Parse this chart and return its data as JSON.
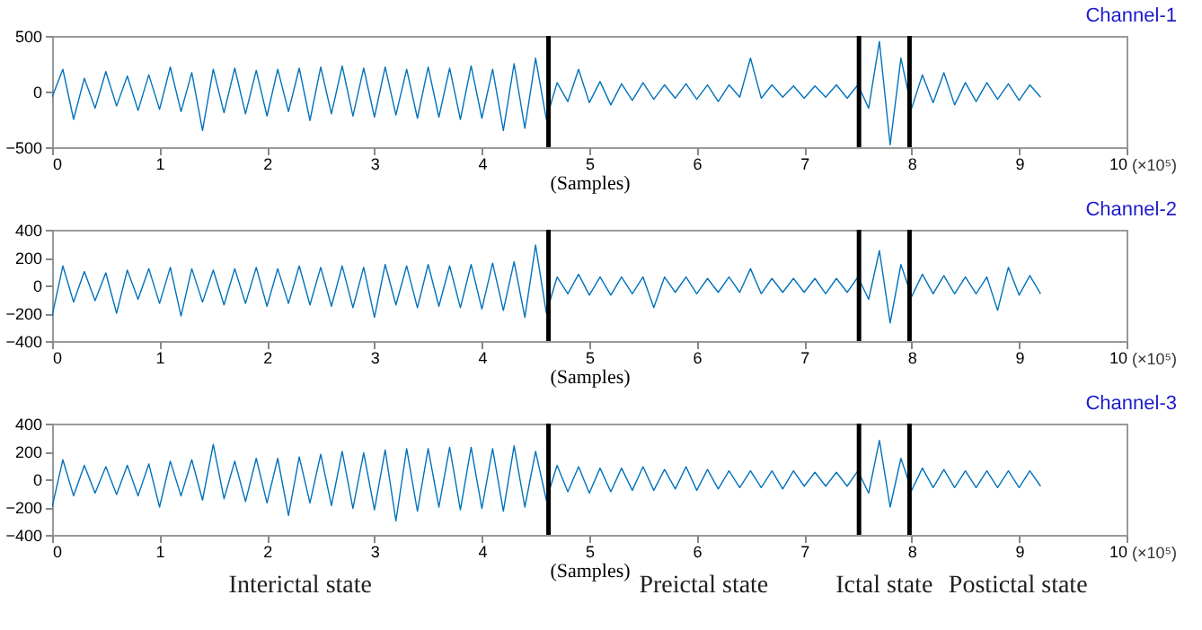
{
  "chart_data": [
    {
      "type": "line",
      "title": "Channel-1",
      "xlabel": "(Samples)",
      "annotations": [
        "(×10⁵)"
      ],
      "x": [
        0.0,
        0.1,
        0.2,
        0.3,
        0.4,
        0.5,
        0.6,
        0.7,
        0.8,
        0.9,
        1.0,
        1.1,
        1.2,
        1.3,
        1.4,
        1.5,
        1.6,
        1.7,
        1.8,
        1.9,
        2.0,
        2.1,
        2.2,
        2.3,
        2.4,
        2.5,
        2.6,
        2.7,
        2.8,
        2.9,
        3.0,
        3.1,
        3.2,
        3.3,
        3.4,
        3.5,
        3.6,
        3.7,
        3.8,
        3.9,
        4.0,
        4.1,
        4.2,
        4.3,
        4.4,
        4.5,
        4.6,
        4.7,
        4.8,
        4.9,
        5.0,
        5.1,
        5.2,
        5.3,
        5.4,
        5.5,
        5.6,
        5.7,
        5.8,
        5.9,
        6.0,
        6.1,
        6.2,
        6.3,
        6.4,
        6.5,
        6.6,
        6.7,
        6.8,
        6.9,
        7.0,
        7.1,
        7.2,
        7.3,
        7.4,
        7.5,
        7.6,
        7.7,
        7.8,
        7.9,
        8.0,
        8.1,
        8.2,
        8.3,
        8.4,
        8.5,
        8.6,
        8.7,
        8.8,
        8.9,
        9.0,
        9.1,
        9.2
      ],
      "series": [
        {
          "color": "#0072bd",
          "values": [
            -50,
            200,
            -250,
            120,
            -150,
            180,
            -130,
            140,
            -170,
            150,
            -160,
            220,
            -180,
            170,
            -350,
            200,
            -190,
            210,
            -200,
            190,
            -220,
            200,
            -180,
            210,
            -260,
            220,
            -200,
            230,
            -220,
            210,
            -230,
            220,
            -210,
            200,
            -240,
            220,
            -230,
            210,
            -250,
            230,
            -240,
            200,
            -350,
            250,
            -330,
            300,
            -250,
            80,
            -90,
            200,
            -100,
            90,
            -120,
            70,
            -80,
            80,
            -70,
            60,
            -60,
            70,
            -70,
            60,
            -90,
            60,
            -50,
            300,
            -60,
            60,
            -50,
            50,
            -60,
            50,
            -50,
            60,
            -60,
            60,
            -150,
            450,
            -480,
            300,
            -150,
            150,
            -100,
            170,
            -120,
            80,
            -90,
            80,
            -70,
            70,
            -80,
            60,
            -50
          ]
        }
      ],
      "xlim": [
        0,
        10
      ],
      "xticks": [
        0,
        1,
        2,
        3,
        4,
        5,
        6,
        7,
        8,
        9,
        10
      ],
      "ylim": [
        -500,
        500
      ],
      "yticks": [
        -500,
        0,
        500
      ],
      "grid": false,
      "ref_lines": [
        {
          "axis": "x",
          "value": 4.62,
          "color": "#000000"
        },
        {
          "axis": "x",
          "value": 7.51,
          "color": "#000000"
        },
        {
          "axis": "x",
          "value": 7.98,
          "color": "#000000"
        }
      ]
    },
    {
      "type": "line",
      "title": "Channel-2",
      "xlabel": "(Samples)",
      "annotations": [
        "(×10⁵)"
      ],
      "x": [
        0.0,
        0.1,
        0.2,
        0.3,
        0.4,
        0.5,
        0.6,
        0.7,
        0.8,
        0.9,
        1.0,
        1.1,
        1.2,
        1.3,
        1.4,
        1.5,
        1.6,
        1.7,
        1.8,
        1.9,
        2.0,
        2.1,
        2.2,
        2.3,
        2.4,
        2.5,
        2.6,
        2.7,
        2.8,
        2.9,
        3.0,
        3.1,
        3.2,
        3.3,
        3.4,
        3.5,
        3.6,
        3.7,
        3.8,
        3.9,
        4.0,
        4.1,
        4.2,
        4.3,
        4.4,
        4.5,
        4.6,
        4.7,
        4.8,
        4.9,
        5.0,
        5.1,
        5.2,
        5.3,
        5.4,
        5.5,
        5.6,
        5.7,
        5.8,
        5.9,
        6.0,
        6.1,
        6.2,
        6.3,
        6.4,
        6.5,
        6.6,
        6.7,
        6.8,
        6.9,
        7.0,
        7.1,
        7.2,
        7.3,
        7.4,
        7.5,
        7.6,
        7.7,
        7.8,
        7.9,
        8.0,
        8.1,
        8.2,
        8.3,
        8.4,
        8.5,
        8.6,
        8.7,
        8.8,
        8.9,
        9.0,
        9.1,
        9.2
      ],
      "series": [
        {
          "color": "#0072bd",
          "values": [
            -220,
            140,
            -120,
            100,
            -110,
            90,
            -200,
            110,
            -100,
            120,
            -130,
            130,
            -220,
            120,
            -120,
            110,
            -140,
            120,
            -130,
            130,
            -150,
            120,
            -130,
            140,
            -140,
            130,
            -150,
            140,
            -160,
            130,
            -230,
            150,
            -140,
            140,
            -160,
            150,
            -150,
            140,
            -160,
            150,
            -170,
            160,
            -180,
            170,
            -230,
            290,
            -200,
            60,
            -60,
            80,
            -70,
            60,
            -70,
            60,
            -60,
            60,
            -160,
            60,
            -50,
            60,
            -60,
            50,
            -50,
            60,
            -50,
            120,
            -60,
            50,
            -50,
            50,
            -50,
            50,
            -60,
            50,
            -50,
            60,
            -100,
            250,
            -270,
            150,
            -80,
            80,
            -60,
            70,
            -60,
            60,
            -60,
            60,
            -180,
            130,
            -70,
            70,
            -60
          ]
        }
      ],
      "xlim": [
        0,
        10
      ],
      "xticks": [
        0,
        1,
        2,
        3,
        4,
        5,
        6,
        7,
        8,
        9,
        10
      ],
      "ylim": [
        -400,
        400
      ],
      "yticks": [
        -400,
        -200,
        0,
        200,
        400
      ],
      "grid": false,
      "ref_lines": [
        {
          "axis": "x",
          "value": 4.62,
          "color": "#000000"
        },
        {
          "axis": "x",
          "value": 7.51,
          "color": "#000000"
        },
        {
          "axis": "x",
          "value": 7.98,
          "color": "#000000"
        }
      ]
    },
    {
      "type": "line",
      "title": "Channel-3",
      "xlabel": "(Samples)",
      "annotations": [
        "(×10⁵)",
        "Interictal state",
        "Preictal state",
        "Ictal state",
        "Postictal state"
      ],
      "x": [
        0.0,
        0.1,
        0.2,
        0.3,
        0.4,
        0.5,
        0.6,
        0.7,
        0.8,
        0.9,
        1.0,
        1.1,
        1.2,
        1.3,
        1.4,
        1.5,
        1.6,
        1.7,
        1.8,
        1.9,
        2.0,
        2.1,
        2.2,
        2.3,
        2.4,
        2.5,
        2.6,
        2.7,
        2.8,
        2.9,
        3.0,
        3.1,
        3.2,
        3.3,
        3.4,
        3.5,
        3.6,
        3.7,
        3.8,
        3.9,
        4.0,
        4.1,
        4.2,
        4.3,
        4.4,
        4.5,
        4.6,
        4.7,
        4.8,
        4.9,
        5.0,
        5.1,
        5.2,
        5.3,
        5.4,
        5.5,
        5.6,
        5.7,
        5.8,
        5.9,
        6.0,
        6.1,
        6.2,
        6.3,
        6.4,
        6.5,
        6.6,
        6.7,
        6.8,
        6.9,
        7.0,
        7.1,
        7.2,
        7.3,
        7.4,
        7.5,
        7.6,
        7.7,
        7.8,
        7.9,
        8.0,
        8.1,
        8.2,
        8.3,
        8.4,
        8.5,
        8.6,
        8.7,
        8.8,
        8.9,
        9.0,
        9.1,
        9.2
      ],
      "series": [
        {
          "color": "#0072bd",
          "values": [
            -200,
            140,
            -120,
            100,
            -100,
            90,
            -110,
            100,
            -120,
            110,
            -200,
            130,
            -120,
            140,
            -150,
            250,
            -140,
            130,
            -160,
            150,
            -170,
            150,
            -260,
            160,
            -170,
            180,
            -190,
            200,
            -210,
            190,
            -220,
            210,
            -300,
            220,
            -230,
            220,
            -200,
            230,
            -220,
            230,
            -210,
            220,
            -230,
            240,
            -200,
            200,
            -150,
            100,
            -90,
            90,
            -100,
            80,
            -90,
            80,
            -80,
            90,
            -80,
            70,
            -70,
            90,
            -80,
            70,
            -70,
            60,
            -60,
            60,
            -60,
            60,
            -70,
            60,
            -50,
            50,
            -50,
            50,
            -50,
            60,
            -100,
            280,
            -200,
            150,
            -80,
            80,
            -60,
            70,
            -60,
            60,
            -60,
            60,
            -60,
            60,
            -60,
            60,
            -50
          ]
        }
      ],
      "xlim": [
        0,
        10
      ],
      "xticks": [
        0,
        1,
        2,
        3,
        4,
        5,
        6,
        7,
        8,
        9,
        10
      ],
      "ylim": [
        -400,
        400
      ],
      "yticks": [
        -400,
        -200,
        0,
        200,
        400
      ],
      "grid": false,
      "ref_lines": [
        {
          "axis": "x",
          "value": 4.62,
          "color": "#000000"
        },
        {
          "axis": "x",
          "value": 7.51,
          "color": "#000000"
        },
        {
          "axis": "x",
          "value": 7.98,
          "color": "#000000"
        }
      ]
    }
  ]
}
